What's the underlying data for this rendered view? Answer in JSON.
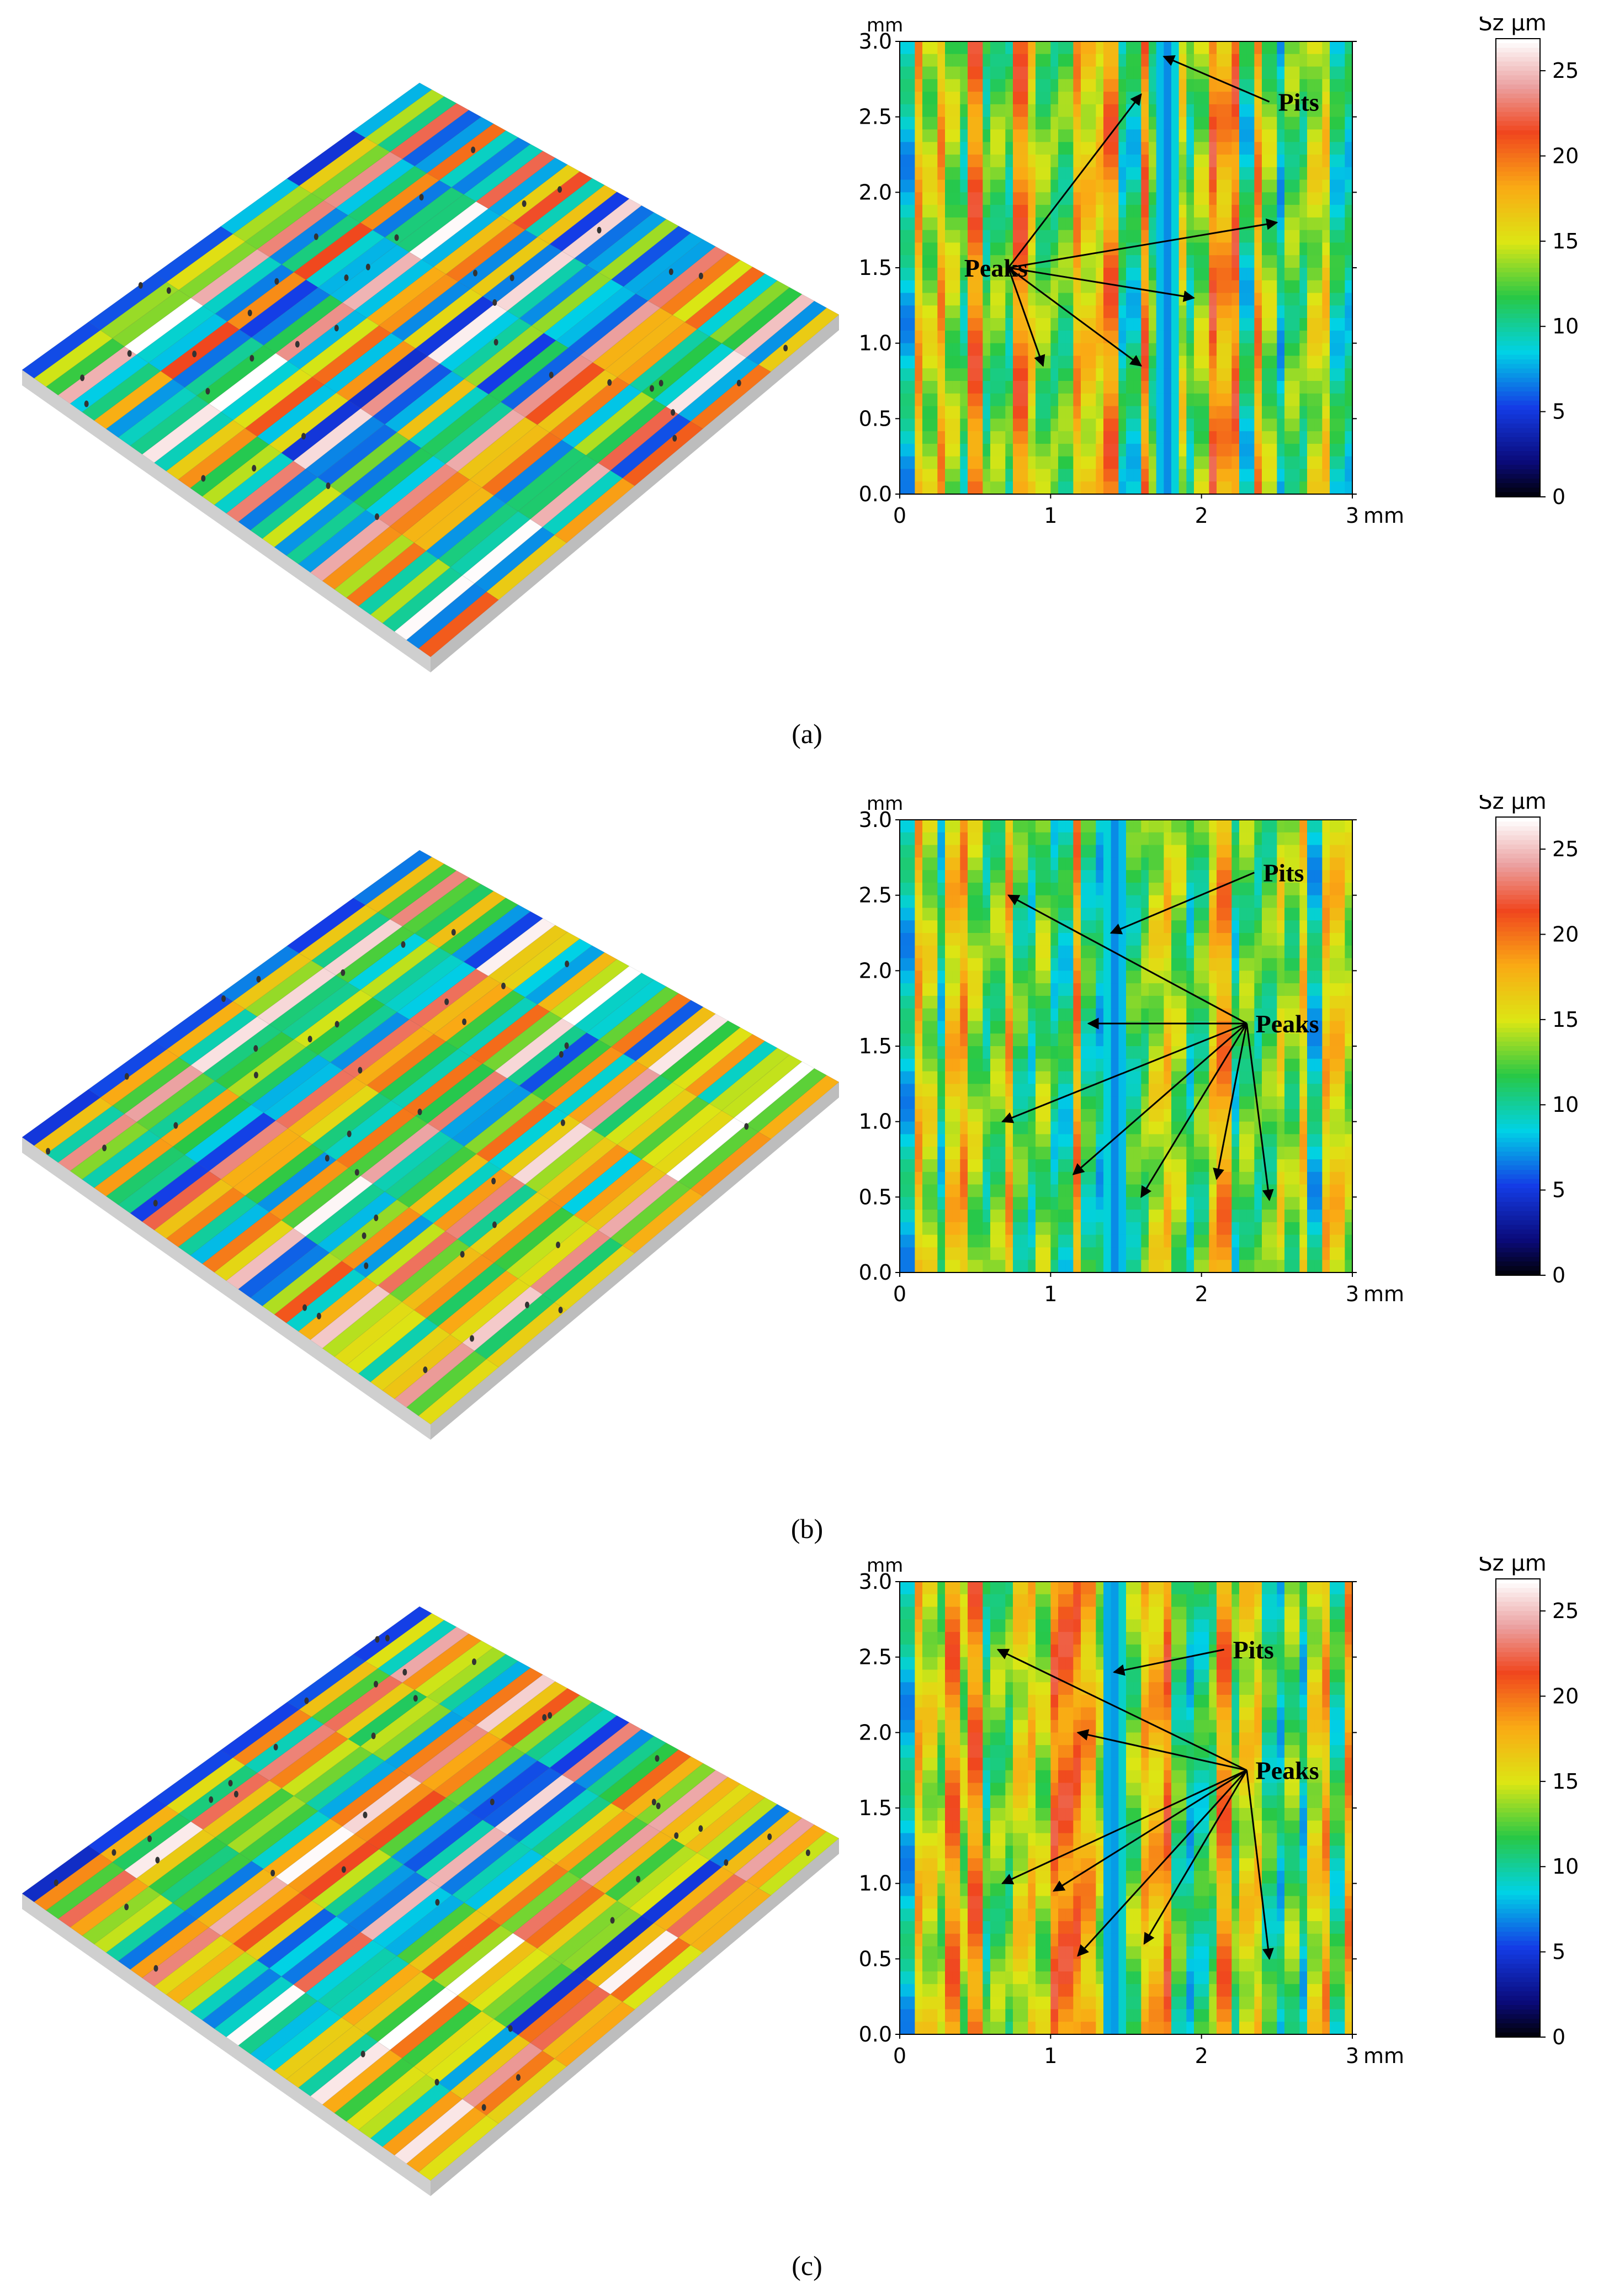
{
  "panels": [
    {
      "caption": "(a)",
      "chart_data": {
        "type": "heatmap",
        "x_unit": "mm",
        "y_unit": "mm",
        "xlim": [
          0,
          3
        ],
        "ylim": [
          0,
          3
        ],
        "x_ticks": [
          "0",
          "1",
          "2",
          "3"
        ],
        "y_ticks": [
          "0.0",
          "0.5",
          "1.0",
          "1.5",
          "2.0",
          "2.5",
          "3.0"
        ],
        "colorbar": {
          "label": "Sz µm",
          "range": [
            0,
            25
          ],
          "ticks": [
            "0",
            "5",
            "10",
            "15",
            "20",
            "25"
          ]
        },
        "annotations": [
          {
            "text": "Pits",
            "x": 2.45,
            "y": 2.6,
            "targets": [
              [
                1.75,
                2.9
              ]
            ]
          },
          {
            "text": "Peaks",
            "x": 0.72,
            "y": 1.5,
            "targets": [
              [
                1.6,
                2.65
              ],
              [
                2.5,
                1.8
              ],
              [
                1.95,
                1.3
              ],
              [
                1.6,
                0.85
              ],
              [
                0.95,
                0.85
              ]
            ]
          }
        ]
      }
    },
    {
      "caption": "(b)",
      "chart_data": {
        "type": "heatmap",
        "x_unit": "mm",
        "y_unit": "mm",
        "xlim": [
          0,
          3
        ],
        "ylim": [
          0,
          3
        ],
        "x_ticks": [
          "0",
          "1",
          "2",
          "3"
        ],
        "y_ticks": [
          "0.0",
          "0.5",
          "1.0",
          "1.5",
          "2.0",
          "2.5",
          "3.0"
        ],
        "colorbar": {
          "label": "Sz µm",
          "range": [
            0,
            25
          ],
          "ticks": [
            "0",
            "5",
            "10",
            "15",
            "20",
            "25"
          ]
        },
        "annotations": [
          {
            "text": "Pits",
            "x": 2.35,
            "y": 2.65,
            "targets": [
              [
                1.4,
                2.25
              ]
            ]
          },
          {
            "text": "Peaks",
            "x": 2.3,
            "y": 1.65,
            "targets": [
              [
                0.72,
                2.5
              ],
              [
                1.25,
                1.65
              ],
              [
                0.68,
                1.0
              ],
              [
                1.15,
                0.65
              ],
              [
                1.6,
                0.5
              ],
              [
                2.1,
                0.62
              ],
              [
                2.45,
                0.48
              ]
            ]
          }
        ]
      }
    },
    {
      "caption": "(c)",
      "chart_data": {
        "type": "heatmap",
        "x_unit": "mm",
        "y_unit": "mm",
        "xlim": [
          0,
          3
        ],
        "ylim": [
          0,
          3
        ],
        "x_ticks": [
          "0",
          "1",
          "2",
          "3"
        ],
        "y_ticks": [
          "0.0",
          "0.5",
          "1.0",
          "1.5",
          "2.0",
          "2.5",
          "3.0"
        ],
        "colorbar": {
          "label": "Sz µm",
          "range": [
            0,
            25
          ],
          "ticks": [
            "0",
            "5",
            "10",
            "15",
            "20",
            "25"
          ]
        },
        "annotations": [
          {
            "text": "Pits",
            "x": 2.15,
            "y": 2.55,
            "targets": [
              [
                1.42,
                2.4
              ]
            ]
          },
          {
            "text": "Peaks",
            "x": 2.3,
            "y": 1.75,
            "targets": [
              [
                0.65,
                2.55
              ],
              [
                1.18,
                2.0
              ],
              [
                0.68,
                1.0
              ],
              [
                1.02,
                0.95
              ],
              [
                1.18,
                0.52
              ],
              [
                1.62,
                0.6
              ],
              [
                2.45,
                0.5
              ]
            ]
          }
        ]
      }
    }
  ]
}
